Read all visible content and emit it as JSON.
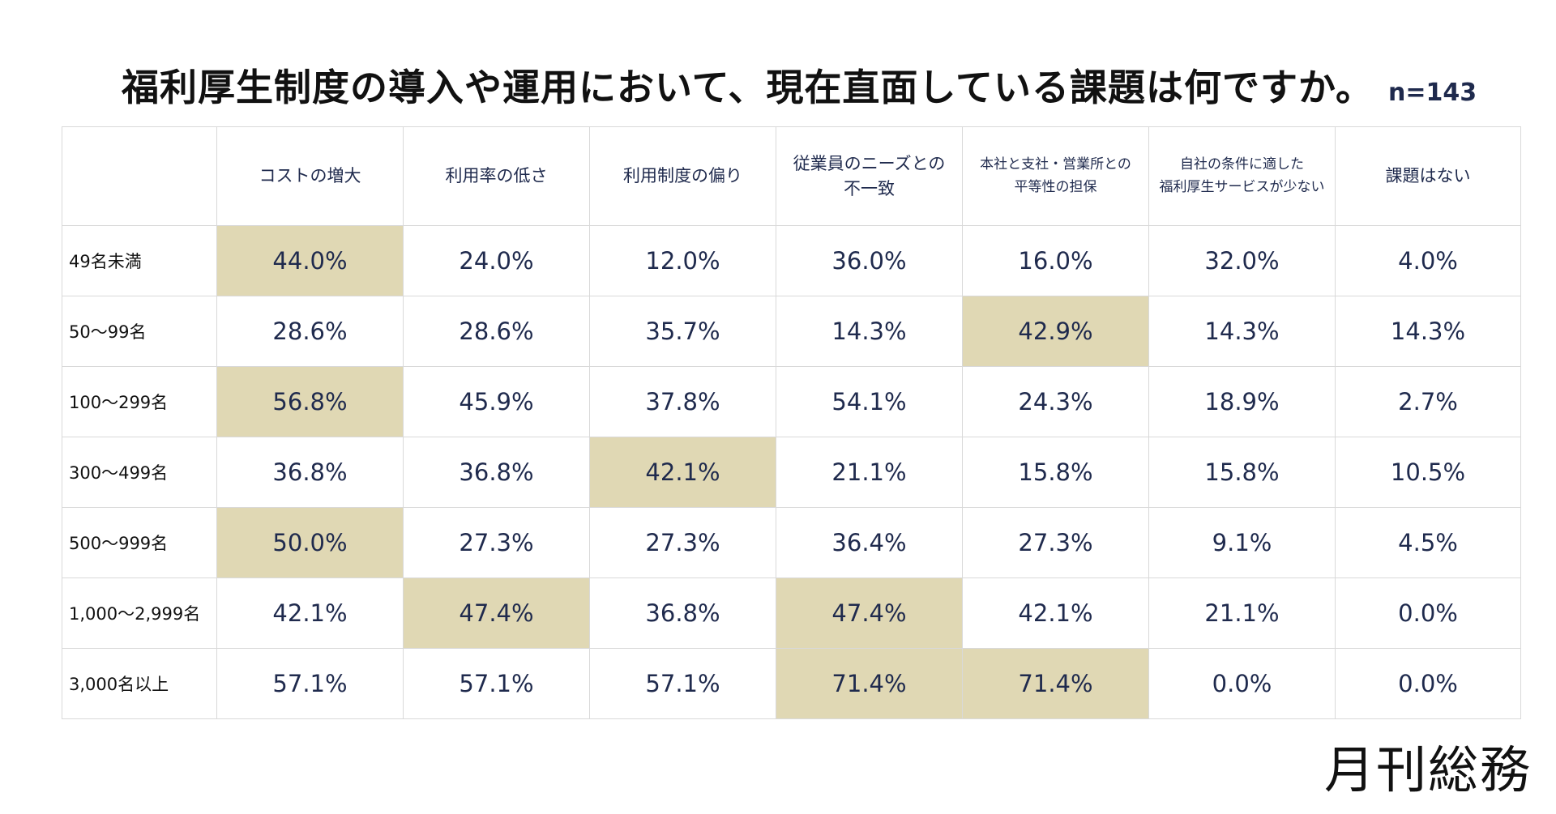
{
  "title": "福利厚生制度の導入や運用において、現在直面している課題は何ですか。",
  "sample_size": "n=143",
  "logo_text": "月刊総務",
  "highlight_color": "#e0d8b4",
  "chart_data": {
    "type": "table",
    "title": "福利厚生制度の導入や運用において、現在直面している課題は何ですか。",
    "columns": [
      [
        "コストの増大"
      ],
      [
        "利用率の低さ"
      ],
      [
        "利用制度の偏り"
      ],
      [
        "従業員のニーズとの",
        "不一致"
      ],
      [
        "本社と支社・営業所との",
        "平等性の担保"
      ],
      [
        "自社の条件に適した",
        "福利厚生サービスが少ない"
      ],
      [
        "課題はない"
      ]
    ],
    "rows": [
      {
        "label": "49名未満",
        "values": [
          "44.0%",
          "24.0%",
          "12.0%",
          "36.0%",
          "16.0%",
          "32.0%",
          "4.0%"
        ],
        "highlight": [
          0
        ]
      },
      {
        "label": "50～99名",
        "values": [
          "28.6%",
          "28.6%",
          "35.7%",
          "14.3%",
          "42.9%",
          "14.3%",
          "14.3%"
        ],
        "highlight": [
          4
        ]
      },
      {
        "label": "100～299名",
        "values": [
          "56.8%",
          "45.9%",
          "37.8%",
          "54.1%",
          "24.3%",
          "18.9%",
          "2.7%"
        ],
        "highlight": [
          0
        ]
      },
      {
        "label": "300～499名",
        "values": [
          "36.8%",
          "36.8%",
          "42.1%",
          "21.1%",
          "15.8%",
          "15.8%",
          "10.5%"
        ],
        "highlight": [
          2
        ]
      },
      {
        "label": "500～999名",
        "values": [
          "50.0%",
          "27.3%",
          "27.3%",
          "36.4%",
          "27.3%",
          "9.1%",
          "4.5%"
        ],
        "highlight": [
          0
        ]
      },
      {
        "label": "1,000～2,999名",
        "values": [
          "42.1%",
          "47.4%",
          "36.8%",
          "47.4%",
          "42.1%",
          "21.1%",
          "0.0%"
        ],
        "highlight": [
          1,
          3
        ]
      },
      {
        "label": "3,000名以上",
        "values": [
          "57.1%",
          "57.1%",
          "57.1%",
          "71.4%",
          "71.4%",
          "0.0%",
          "0.0%"
        ],
        "highlight": [
          3,
          4
        ]
      }
    ]
  }
}
